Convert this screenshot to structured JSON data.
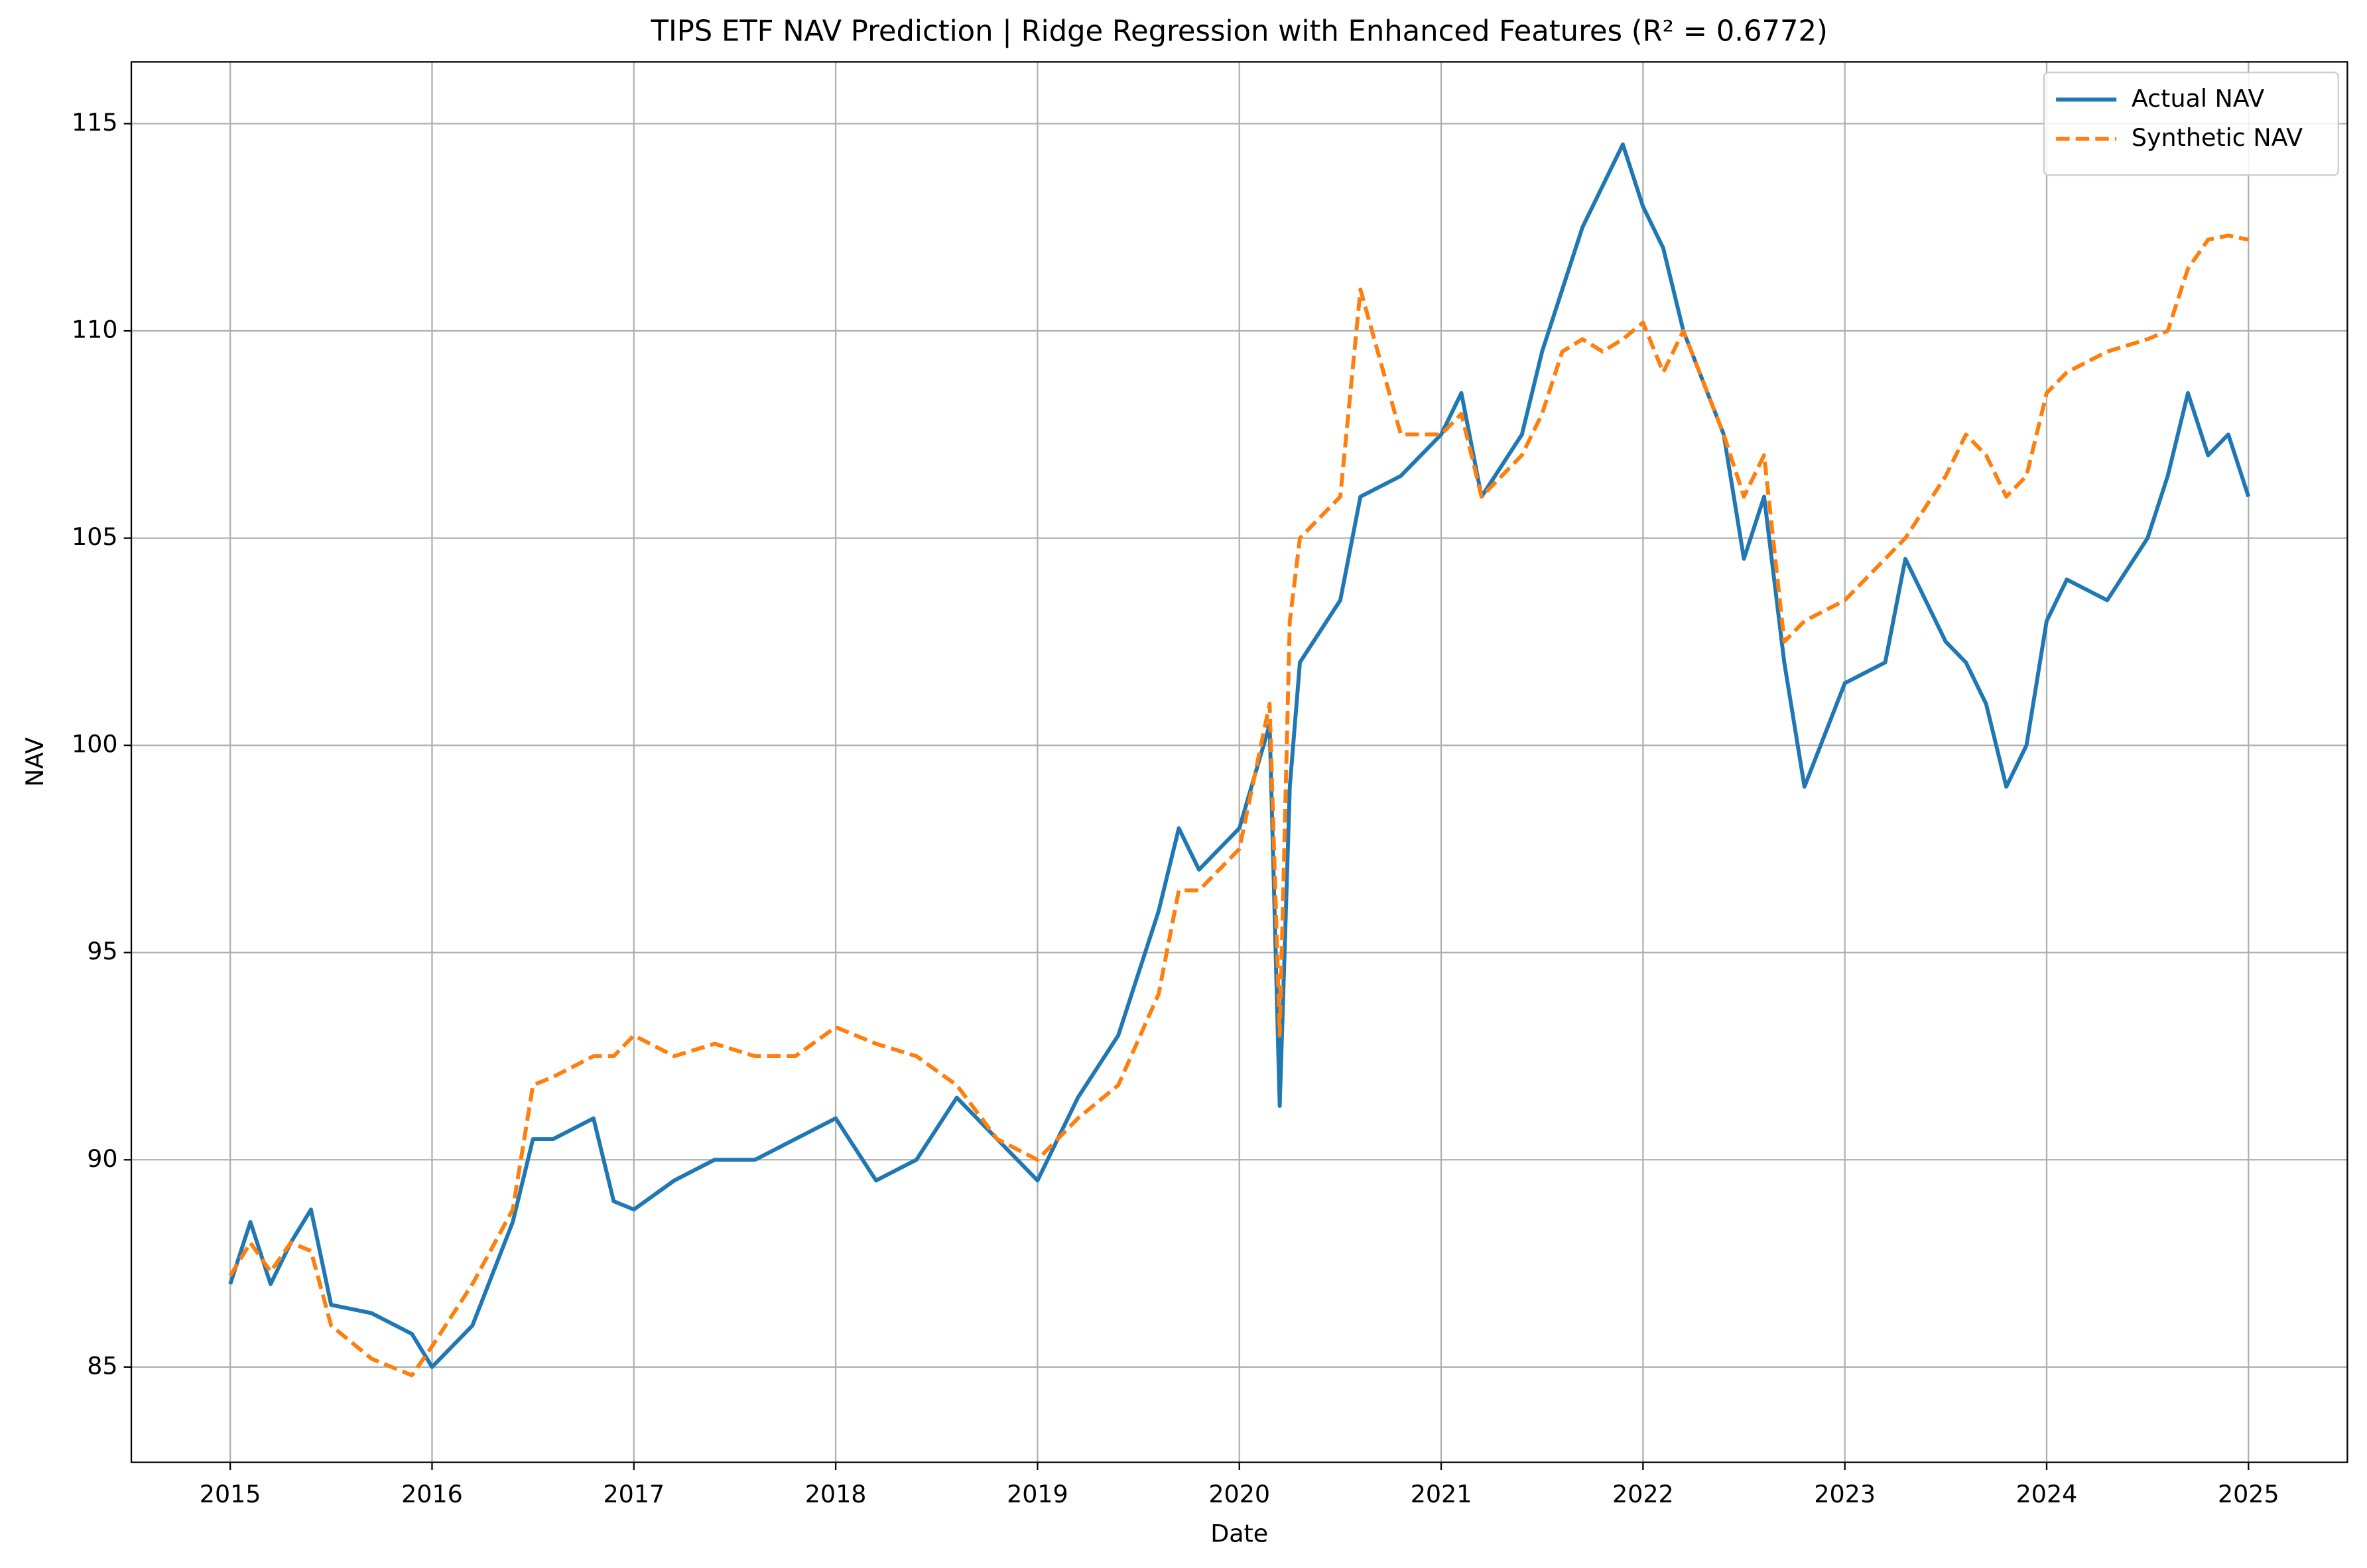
{
  "chart_data": {
    "type": "line",
    "title": "TIPS ETF NAV Prediction | Ridge Regression with Enhanced Features (R² = 0.6772)",
    "x_label": "Date",
    "y_label": "NAV",
    "x": [
      2015.0,
      2015.1,
      2015.2,
      2015.3,
      2015.4,
      2015.5,
      2015.7,
      2015.9,
      2016.0,
      2016.2,
      2016.4,
      2016.5,
      2016.6,
      2016.8,
      2016.9,
      2017.0,
      2017.2,
      2017.4,
      2017.6,
      2017.8,
      2018.0,
      2018.2,
      2018.4,
      2018.6,
      2018.8,
      2019.0,
      2019.2,
      2019.4,
      2019.6,
      2019.7,
      2019.8,
      2020.0,
      2020.15,
      2020.2,
      2020.25,
      2020.3,
      2020.5,
      2020.6,
      2020.8,
      2021.0,
      2021.1,
      2021.2,
      2021.4,
      2021.5,
      2021.6,
      2021.7,
      2021.8,
      2021.9,
      2022.0,
      2022.1,
      2022.2,
      2022.4,
      2022.5,
      2022.6,
      2022.7,
      2022.8,
      2023.0,
      2023.2,
      2023.3,
      2023.5,
      2023.6,
      2023.7,
      2023.8,
      2023.9,
      2024.0,
      2024.1,
      2024.3,
      2024.5,
      2024.6,
      2024.7,
      2024.8,
      2024.9,
      2025.0
    ],
    "series": [
      {
        "name": "Actual NAV",
        "color": "#1f77b4",
        "dashed": false,
        "values": [
          87.0,
          88.5,
          87.0,
          88.0,
          88.8,
          86.5,
          86.3,
          85.8,
          85.0,
          86.0,
          88.5,
          90.5,
          90.5,
          91.0,
          89.0,
          88.8,
          89.5,
          90.0,
          90.0,
          90.5,
          91.0,
          89.5,
          90.0,
          91.5,
          90.5,
          89.5,
          91.5,
          93.0,
          96.0,
          98.0,
          97.0,
          98.0,
          100.5,
          91.3,
          99.0,
          102.0,
          103.5,
          106.0,
          106.5,
          107.5,
          108.5,
          106.0,
          107.5,
          109.5,
          111.0,
          112.5,
          113.5,
          114.5,
          113.0,
          112.0,
          110.0,
          107.5,
          104.5,
          106.0,
          102.0,
          99.0,
          101.5,
          102.0,
          104.5,
          102.5,
          102.0,
          101.0,
          99.0,
          100.0,
          103.0,
          104.0,
          103.5,
          105.0,
          106.5,
          108.5,
          107.0,
          107.5,
          106.0
        ]
      },
      {
        "name": "Synthetic NAV",
        "color": "#ff7f0e",
        "dashed": true,
        "values": [
          87.2,
          88.0,
          87.3,
          88.0,
          87.8,
          86.0,
          85.2,
          84.8,
          85.5,
          87.0,
          88.8,
          91.8,
          92.0,
          92.5,
          92.5,
          93.0,
          92.5,
          92.8,
          92.5,
          92.5,
          93.2,
          92.8,
          92.5,
          91.8,
          90.5,
          90.0,
          91.0,
          91.8,
          94.0,
          96.5,
          96.5,
          97.5,
          101.0,
          93.0,
          103.0,
          105.0,
          106.0,
          111.0,
          107.5,
          107.5,
          108.0,
          106.0,
          107.0,
          108.0,
          109.5,
          109.8,
          109.5,
          109.8,
          110.2,
          109.0,
          110.0,
          107.5,
          106.0,
          107.0,
          102.5,
          103.0,
          103.5,
          104.5,
          105.0,
          106.5,
          107.5,
          107.0,
          106.0,
          106.5,
          108.5,
          109.0,
          109.5,
          109.8,
          110.0,
          111.5,
          112.2,
          112.3,
          112.2
        ]
      }
    ],
    "xlim": [
      2014.51,
      2025.49
    ],
    "ylim": [
      82.7,
      116.49
    ],
    "xticks": [
      2015,
      2016,
      2017,
      2018,
      2019,
      2020,
      2021,
      2022,
      2023,
      2024,
      2025
    ],
    "yticks": [
      85,
      90,
      95,
      100,
      105,
      110,
      115
    ],
    "grid": true,
    "legend": "upper right"
  }
}
